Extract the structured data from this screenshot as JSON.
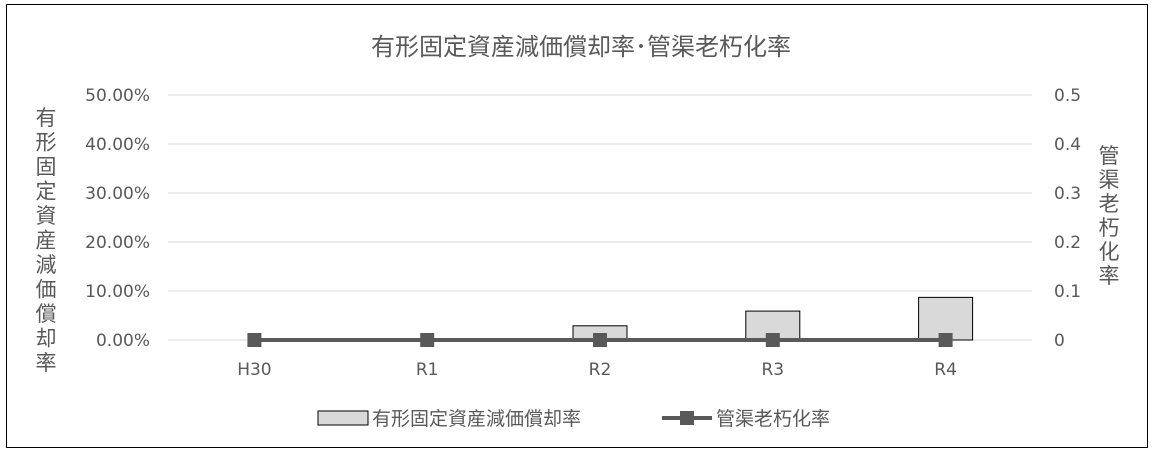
{
  "chart_data": {
    "type": "bar",
    "title": "有形固定資産減価償却率･管渠老朽化率",
    "categories": [
      "H30",
      "R1",
      "R2",
      "R3",
      "R4"
    ],
    "series": [
      {
        "name": "有形固定資産減価償却率",
        "kind": "bar",
        "axis": "left",
        "values": [
          0,
          0,
          2.9,
          5.9,
          8.7
        ],
        "color": "#d9d9d9",
        "stroke": "#000000"
      },
      {
        "name": "管渠老朽化率",
        "kind": "line",
        "axis": "right",
        "values": [
          0,
          0,
          0,
          0,
          0
        ],
        "color": "#595959"
      }
    ],
    "y_left": {
      "label": "有形固定資産減価償却率",
      "ylim": [
        0,
        50
      ],
      "ticks": [
        0,
        10,
        20,
        30,
        40,
        50
      ],
      "tick_labels": [
        "0.00%",
        "10.00%",
        "20.00%",
        "30.00%",
        "40.00%",
        "50.00%"
      ]
    },
    "y_right": {
      "label": "管渠老朽化率",
      "ylim": [
        0,
        0.5
      ],
      "ticks": [
        0,
        0.1,
        0.2,
        0.3,
        0.4,
        0.5
      ],
      "tick_labels": [
        "0",
        "0.1",
        "0.2",
        "0.3",
        "0.4",
        "0.5"
      ]
    },
    "grid": true,
    "legend_position": "bottom"
  }
}
